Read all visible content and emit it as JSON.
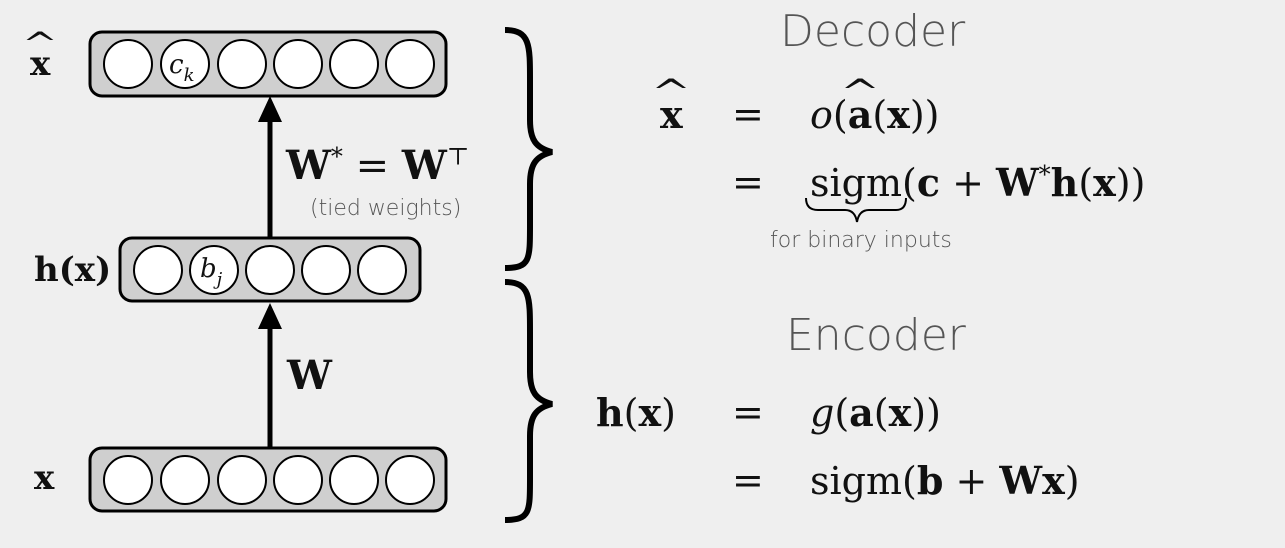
{
  "titles": {
    "decoder": "Decoder",
    "encoder": "Encoder"
  },
  "labels": {
    "x_hat": "x",
    "h_x": "h(x)",
    "x": "x",
    "c_k": "c",
    "c_sub": "k",
    "b_j": "b",
    "b_sub": "j",
    "tied_weights": "(tied weights)",
    "binary_note": "for binary inputs",
    "w": "W"
  },
  "decoder_eq": {
    "lhs": "x",
    "eq": "=",
    "line1": {
      "f": "o",
      "arg_open": "(",
      "a": "a",
      "inner": "(x))"
    },
    "line2": {
      "sigm": "sigm",
      "rest": "(c + W* h(x))"
    }
  },
  "encoder_eq": {
    "lhs": "h(x)",
    "eq": "=",
    "line1": "g(a(x))",
    "line2": "sigm(b + Wx)"
  },
  "layers": {
    "top_units": 6,
    "middle_units": 5,
    "bottom_units": 6
  },
  "colors": {
    "layer_fill": "#cfcfcf",
    "unit_fill": "#ffffff",
    "stroke": "#000000",
    "bg": "#efefef"
  }
}
